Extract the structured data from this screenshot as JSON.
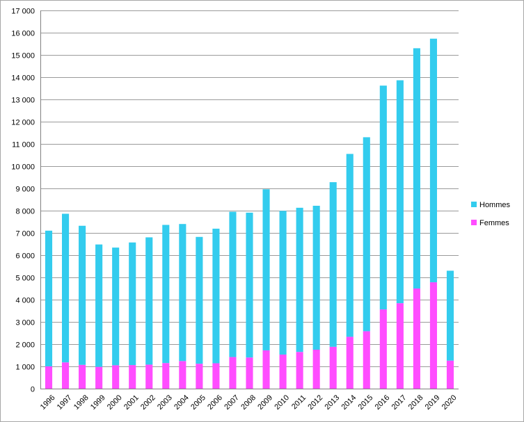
{
  "chart_data": {
    "type": "bar",
    "stacked": true,
    "title": "",
    "xlabel": "",
    "ylabel": "",
    "ylim": [
      0,
      17000
    ],
    "ytick_step": 1000,
    "grid": true,
    "legend_position": "right",
    "categories": [
      "1996",
      "1997",
      "1998",
      "1999",
      "2000",
      "2001",
      "2002",
      "2003",
      "2004",
      "2005",
      "2006",
      "2007",
      "2008",
      "2009",
      "2010",
      "2011",
      "2012",
      "2013",
      "2014",
      "2015",
      "2016",
      "2017",
      "2018",
      "2019",
      "2020"
    ],
    "series": [
      {
        "name": "Femmes",
        "color": "#ff4dff",
        "values": [
          1000,
          1180,
          1070,
          980,
          1050,
          1060,
          1080,
          1150,
          1240,
          1120,
          1140,
          1420,
          1400,
          1720,
          1530,
          1650,
          1750,
          1880,
          2330,
          2580,
          3560,
          3840,
          4500,
          4780,
          1260
        ]
      },
      {
        "name": "Hommes",
        "color": "#33ccee",
        "values": [
          6100,
          6680,
          6250,
          5500,
          5290,
          5510,
          5720,
          6210,
          6160,
          5700,
          6050,
          6530,
          6510,
          7240,
          6460,
          6480,
          6470,
          7400,
          8220,
          8720,
          10060,
          10020,
          10800,
          10950,
          4040
        ]
      }
    ],
    "legend": [
      {
        "name": "Hommes",
        "color": "#33ccee"
      },
      {
        "name": "Femmes",
        "color": "#ff4dff"
      }
    ]
  }
}
